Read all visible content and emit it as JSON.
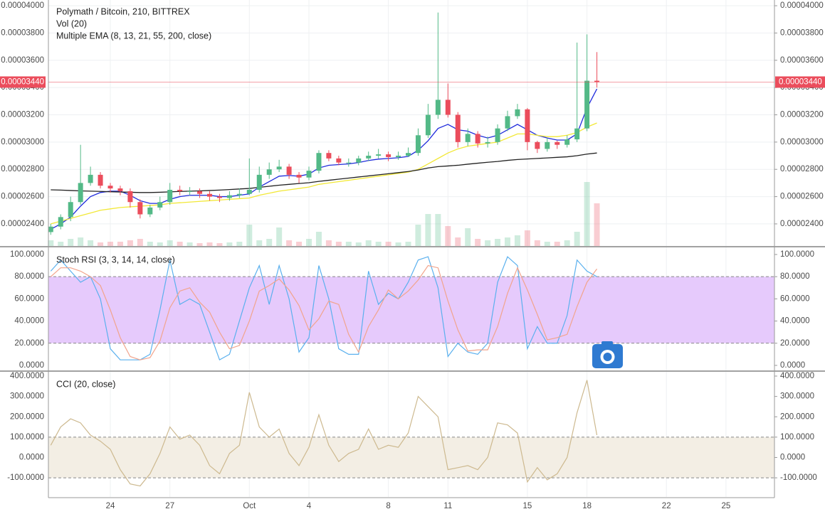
{
  "chart_data": [
    {
      "type": "candlestick",
      "title": "Polymath / Bitcoin, 210, BITTREX",
      "indicators": [
        "Vol (20)",
        "Multiple EMA (8, 13, 21, 55, 200, close)"
      ],
      "categories": [
        null,
        null,
        null,
        null,
        null,
        null,
        "24",
        null,
        null,
        null,
        null,
        null,
        "27",
        null,
        null,
        null,
        null,
        null,
        null,
        null,
        "Oct",
        null,
        null,
        null,
        null,
        null,
        "4",
        null,
        null,
        null,
        null,
        null,
        null,
        null,
        "8",
        null,
        null,
        null,
        null,
        null,
        "11",
        null,
        null,
        null,
        null,
        null,
        null,
        null,
        "15",
        null,
        null,
        null,
        null,
        null,
        "18",
        null,
        null,
        null,
        null,
        null,
        null,
        null,
        "22",
        null,
        null,
        null,
        null,
        null,
        "25",
        null,
        null,
        null,
        null
      ],
      "open": [
        2.34e-05,
        2.38e-05,
        2.45e-05,
        2.56e-05,
        2.7e-05,
        2.76e-05,
        2.68e-05,
        2.66e-05,
        2.64e-05,
        2.56e-05,
        2.47e-05,
        2.52e-05,
        2.56e-05,
        2.65e-05,
        2.64e-05,
        2.64e-05,
        2.62e-05,
        2.6e-05,
        2.59e-05,
        2.61e-05,
        2.62e-05,
        2.65e-05,
        2.76e-05,
        2.8e-05,
        2.82e-05,
        2.76e-05,
        2.74e-05,
        2.79e-05,
        2.92e-05,
        2.88e-05,
        2.85e-05,
        2.85e-05,
        2.88e-05,
        2.9e-05,
        2.91e-05,
        2.89e-05,
        2.9e-05,
        2.92e-05,
        3.05e-05,
        3.2e-05,
        3.31e-05,
        3.2e-05,
        3e-05,
        3.06e-05,
        2.99e-05,
        3e-05,
        3.1e-05,
        3.19e-05,
        3.24e-05,
        3e-05,
        2.95e-05,
        3e-05,
        2.98e-05,
        3.02e-05,
        3.1e-05,
        3.45e-05,
        null,
        null,
        null,
        null,
        null,
        null,
        null,
        null,
        null,
        null,
        null,
        null,
        null,
        null,
        null,
        null,
        null
      ],
      "high": [
        2.4e-05,
        2.47e-05,
        2.6e-05,
        2.98e-05,
        2.82e-05,
        2.78e-05,
        2.7e-05,
        2.68e-05,
        2.66e-05,
        2.58e-05,
        2.54e-05,
        2.6e-05,
        2.7e-05,
        2.68e-05,
        2.67e-05,
        2.66e-05,
        2.64e-05,
        2.62e-05,
        2.64e-05,
        2.66e-05,
        2.88e-05,
        2.82e-05,
        2.85e-05,
        2.87e-05,
        2.84e-05,
        2.78e-05,
        2.82e-05,
        2.94e-05,
        2.94e-05,
        2.9e-05,
        2.88e-05,
        2.9e-05,
        2.93e-05,
        2.95e-05,
        2.93e-05,
        2.93e-05,
        2.96e-05,
        3.1e-05,
        3.28e-05,
        3.95e-05,
        3.43e-05,
        3.22e-05,
        3.1e-05,
        3.08e-05,
        3.04e-05,
        3.13e-05,
        3.23e-05,
        3.28e-05,
        3.25e-05,
        3.01e-05,
        3.03e-05,
        3.01e-05,
        3.05e-05,
        3.73e-05,
        3.79e-05,
        3.66e-05,
        null,
        null,
        null,
        null,
        null,
        null,
        null,
        null,
        null,
        null,
        null,
        null,
        null,
        null,
        null,
        null,
        null
      ],
      "low": [
        2.32e-05,
        2.36e-05,
        2.42e-05,
        2.54e-05,
        2.68e-05,
        2.66e-05,
        2.63e-05,
        2.61e-05,
        2.52e-05,
        2.44e-05,
        2.45e-05,
        2.5e-05,
        2.54e-05,
        2.61e-05,
        2.61e-05,
        2.59e-05,
        2.57e-05,
        2.56e-05,
        2.57e-05,
        2.59e-05,
        2.61e-05,
        2.63e-05,
        2.73e-05,
        2.78e-05,
        2.73e-05,
        2.7e-05,
        2.72e-05,
        2.77e-05,
        2.86e-05,
        2.83e-05,
        2.82e-05,
        2.83e-05,
        2.86e-05,
        2.88e-05,
        2.86e-05,
        2.87e-05,
        2.89e-05,
        2.9e-05,
        3.03e-05,
        3.17e-05,
        3.18e-05,
        2.96e-05,
        2.97e-05,
        2.96e-05,
        2.96e-05,
        2.98e-05,
        3.08e-05,
        3.17e-05,
        2.94e-05,
        2.92e-05,
        2.93e-05,
        2.95e-05,
        2.96e-05,
        3e-05,
        3.08e-05,
        3.4e-05,
        null,
        null,
        null,
        null,
        null,
        null,
        null,
        null,
        null,
        null,
        null,
        null,
        null,
        null,
        null,
        null,
        null
      ],
      "close": [
        2.38e-05,
        2.45e-05,
        2.56e-05,
        2.7e-05,
        2.76e-05,
        2.68e-05,
        2.66e-05,
        2.64e-05,
        2.56e-05,
        2.47e-05,
        2.52e-05,
        2.56e-05,
        2.65e-05,
        2.64e-05,
        2.64e-05,
        2.62e-05,
        2.6e-05,
        2.59e-05,
        2.61e-05,
        2.62e-05,
        2.65e-05,
        2.76e-05,
        2.8e-05,
        2.82e-05,
        2.76e-05,
        2.74e-05,
        2.79e-05,
        2.92e-05,
        2.88e-05,
        2.85e-05,
        2.85e-05,
        2.88e-05,
        2.9e-05,
        2.91e-05,
        2.89e-05,
        2.9e-05,
        2.92e-05,
        3.05e-05,
        3.2e-05,
        3.31e-05,
        3.2e-05,
        3e-05,
        3.06e-05,
        2.99e-05,
        3e-05,
        3.1e-05,
        3.19e-05,
        3.24e-05,
        3e-05,
        2.95e-05,
        3e-05,
        2.98e-05,
        3.02e-05,
        3.1e-05,
        3.45e-05,
        3.44e-05,
        null,
        null,
        null,
        null,
        null,
        null,
        null,
        null,
        null,
        null,
        null,
        null,
        null,
        null,
        null,
        null,
        null
      ],
      "volume": [
        8,
        6,
        10,
        12,
        8,
        5,
        6,
        6,
        8,
        10,
        6,
        5,
        8,
        6,
        5,
        4,
        5,
        4,
        5,
        6,
        30,
        8,
        10,
        26,
        8,
        6,
        10,
        20,
        8,
        6,
        6,
        5,
        8,
        6,
        6,
        5,
        6,
        30,
        45,
        45,
        28,
        12,
        25,
        10,
        8,
        10,
        12,
        15,
        22,
        8,
        6,
        6,
        8,
        20,
        90,
        60,
        null,
        null,
        null,
        null,
        null,
        null,
        null,
        null,
        null,
        null,
        null,
        null,
        null,
        null,
        null,
        null,
        null
      ],
      "up_color": "#53b987",
      "down_color": "#eb4d5c",
      "series": [
        {
          "color": "#1f2bdc",
          "values": [
            2.36e-05,
            2.4e-05,
            2.45e-05,
            2.53e-05,
            2.6e-05,
            2.63e-05,
            2.64e-05,
            2.64e-05,
            2.61e-05,
            2.57e-05,
            2.55e-05,
            2.55e-05,
            2.58e-05,
            2.6e-05,
            2.61e-05,
            2.61e-05,
            2.61e-05,
            2.6e-05,
            2.6e-05,
            2.61e-05,
            2.62e-05,
            2.67e-05,
            2.71e-05,
            2.75e-05,
            2.755e-05,
            2.75e-05,
            2.765e-05,
            2.81e-05,
            2.83e-05,
            2.835e-05,
            2.84e-05,
            2.85e-05,
            2.865e-05,
            2.875e-05,
            2.88e-05,
            2.885e-05,
            2.895e-05,
            2.94e-05,
            3.01e-05,
            3.1e-05,
            3.13e-05,
            3.09e-05,
            3.08e-05,
            3.05e-05,
            3.03e-05,
            3.05e-05,
            3.09e-05,
            3.13e-05,
            3.09e-05,
            3.05e-05,
            3.03e-05,
            3.015e-05,
            3.015e-05,
            3.06e-05,
            3.25e-05,
            3.39e-05,
            null,
            null,
            null,
            null,
            null,
            null,
            null,
            null,
            null,
            null,
            null,
            null,
            null,
            null,
            null,
            null,
            null
          ]
        },
        {
          "color": "#f2e837",
          "values": [
            2.4e-05,
            2.42e-05,
            2.44e-05,
            2.46e-05,
            2.48e-05,
            2.5e-05,
            2.51e-05,
            2.52e-05,
            2.525e-05,
            2.53e-05,
            2.535e-05,
            2.54e-05,
            2.55e-05,
            2.555e-05,
            2.56e-05,
            2.565e-05,
            2.57e-05,
            2.575e-05,
            2.58e-05,
            2.585e-05,
            2.59e-05,
            2.61e-05,
            2.625e-05,
            2.64e-05,
            2.65e-05,
            2.66e-05,
            2.67e-05,
            2.69e-05,
            2.7e-05,
            2.71e-05,
            2.72e-05,
            2.73e-05,
            2.74e-05,
            2.75e-05,
            2.76e-05,
            2.77e-05,
            2.78e-05,
            2.8e-05,
            2.84e-05,
            2.88e-05,
            2.92e-05,
            2.95e-05,
            2.97e-05,
            2.98e-05,
            2.99e-05,
            3e-05,
            3.03e-05,
            3.06e-05,
            3.06e-05,
            3.05e-05,
            3.04e-05,
            3.04e-05,
            3.05e-05,
            3.07e-05,
            3.11e-05,
            3.14e-05,
            null,
            null,
            null,
            null,
            null,
            null,
            null,
            null,
            null,
            null,
            null,
            null,
            null,
            null,
            null,
            null,
            null
          ]
        },
        {
          "color": "#222222",
          "values": [
            2.65e-05,
            2.648e-05,
            2.645e-05,
            2.642e-05,
            2.64e-05,
            2.638e-05,
            2.636e-05,
            2.634e-05,
            2.632e-05,
            2.63e-05,
            2.63e-05,
            2.632e-05,
            2.635e-05,
            2.638e-05,
            2.64e-05,
            2.642e-05,
            2.645e-05,
            2.648e-05,
            2.652e-05,
            2.656e-05,
            2.66e-05,
            2.668e-05,
            2.676e-05,
            2.684e-05,
            2.69e-05,
            2.696e-05,
            2.702e-05,
            2.712e-05,
            2.72e-05,
            2.728e-05,
            2.736e-05,
            2.744e-05,
            2.752e-05,
            2.76e-05,
            2.768e-05,
            2.776e-05,
            2.784e-05,
            2.795e-05,
            2.81e-05,
            2.82e-05,
            2.825e-05,
            2.83e-05,
            2.838e-05,
            2.845e-05,
            2.852e-05,
            2.858e-05,
            2.866e-05,
            2.872e-05,
            2.876e-05,
            2.88e-05,
            2.884e-05,
            2.888e-05,
            2.892e-05,
            2.9e-05,
            2.912e-05,
            2.92e-05,
            null,
            null,
            null,
            null,
            null,
            null,
            null,
            null,
            null,
            null,
            null,
            null,
            null,
            null,
            null,
            null,
            null
          ]
        }
      ],
      "ylim": [
        2.238e-05,
        4.042e-05
      ],
      "yticks": [
        {
          "value": 2.4e-05,
          "label": "0.00002400"
        },
        {
          "value": 2.6e-05,
          "label": "0.00002600"
        },
        {
          "value": 2.8e-05,
          "label": "0.00002800"
        },
        {
          "value": 3e-05,
          "label": "0.00003000"
        },
        {
          "value": 3.2e-05,
          "label": "0.00003200"
        },
        {
          "value": 3.4e-05,
          "label": "0.00003400"
        },
        {
          "value": 3.6e-05,
          "label": "0.00003600"
        },
        {
          "value": 3.8e-05,
          "label": "0.00003800"
        },
        {
          "value": 4e-05,
          "label": "0.00004000"
        }
      ],
      "last_price": {
        "value": 3.44e-05,
        "label": "0.00003440",
        "color": "#eb4d5c"
      },
      "grid": true
    },
    {
      "type": "line",
      "title": "Stoch RSI (3, 3, 14, 14, close)",
      "series": [
        {
          "color": "#5ab0ee",
          "values": [
            85,
            95,
            85,
            75,
            80,
            60,
            15,
            5,
            5,
            5,
            10,
            50,
            95,
            55,
            60,
            55,
            30,
            5,
            10,
            40,
            70,
            90,
            55,
            90,
            60,
            12,
            25,
            90,
            60,
            15,
            10,
            10,
            85,
            55,
            65,
            60,
            75,
            95,
            98,
            70,
            8,
            20,
            12,
            10,
            20,
            75,
            98,
            90,
            15,
            35,
            20,
            20,
            45,
            95,
            85,
            80,
            null,
            null,
            null,
            null,
            null,
            null,
            null,
            null,
            null,
            null,
            null,
            null,
            null,
            null,
            null,
            null,
            null
          ]
        },
        {
          "color": "#f2a48c",
          "values": [
            80,
            88,
            88,
            85,
            80,
            72,
            50,
            25,
            8,
            5,
            7,
            22,
            52,
            67,
            70,
            57,
            48,
            30,
            15,
            18,
            40,
            67,
            72,
            78,
            68,
            54,
            32,
            42,
            58,
            55,
            28,
            12,
            35,
            50,
            68,
            60,
            67,
            77,
            90,
            88,
            58,
            32,
            13,
            14,
            14,
            35,
            65,
            88,
            68,
            46,
            23,
            25,
            28,
            53,
            75,
            87,
            null,
            null,
            null,
            null,
            null,
            null,
            null,
            null,
            null,
            null,
            null,
            null,
            null,
            null,
            null,
            null,
            null
          ]
        }
      ],
      "ylim": [
        -4.5,
        106.4
      ],
      "yticks": [
        {
          "value": 0,
          "label": "0.0000"
        },
        {
          "value": 20,
          "label": "20.0000"
        },
        {
          "value": 40,
          "label": "40.0000"
        },
        {
          "value": 60,
          "label": "60.0000"
        },
        {
          "value": 80,
          "label": "80.0000"
        },
        {
          "value": 100,
          "label": "100.0000"
        }
      ],
      "band": [
        20,
        80
      ],
      "band_color": "#e6cafc"
    },
    {
      "type": "line",
      "title": "CCI (20, close)",
      "series": [
        {
          "color": "#cdb98f",
          "values": [
            60,
            150,
            190,
            170,
            110,
            80,
            40,
            -60,
            -130,
            -140,
            -80,
            20,
            150,
            90,
            110,
            60,
            -40,
            -80,
            20,
            60,
            320,
            150,
            100,
            140,
            20,
            -40,
            50,
            210,
            60,
            -20,
            20,
            40,
            140,
            40,
            60,
            50,
            120,
            300,
            250,
            200,
            -60,
            -50,
            -40,
            -60,
            0,
            170,
            160,
            120,
            -120,
            -50,
            -110,
            -80,
            0,
            220,
            380,
            110,
            null,
            null,
            null,
            null,
            null,
            null,
            null,
            null,
            null,
            null,
            null,
            null,
            null,
            null,
            null,
            null,
            null
          ]
        }
      ],
      "ylim": [
        -194,
        421
      ],
      "yticks": [
        {
          "value": -100,
          "label": "-100.0000"
        },
        {
          "value": 0,
          "label": "0.0000"
        },
        {
          "value": 100,
          "label": "100.0000"
        },
        {
          "value": 200,
          "label": "200.0000"
        },
        {
          "value": 300,
          "label": "300.0000"
        },
        {
          "value": 400,
          "label": "400.0000"
        }
      ],
      "band": [
        -100,
        100
      ],
      "band_color": "#f3eee4"
    }
  ]
}
